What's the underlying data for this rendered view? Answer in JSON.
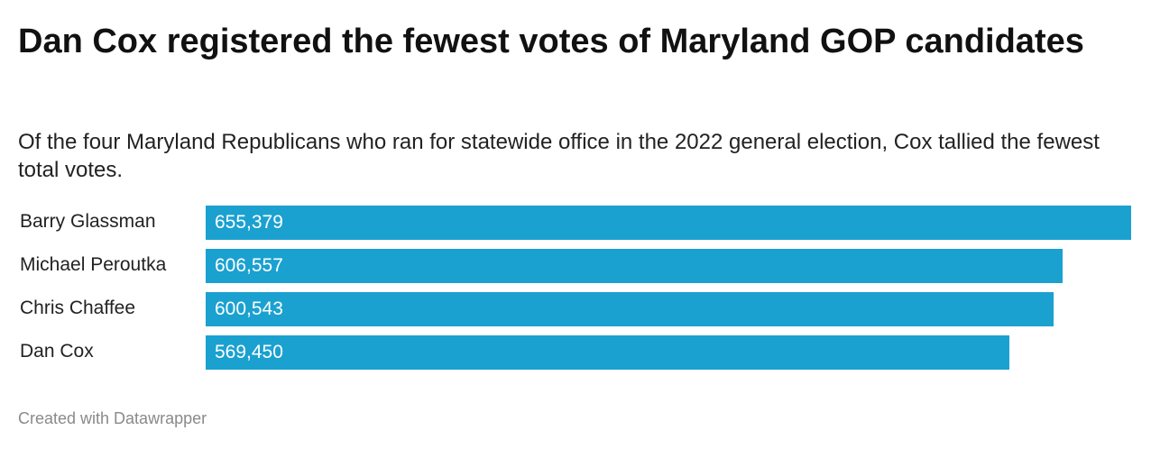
{
  "title": "Dan Cox registered the fewest votes of Maryland GOP candidates",
  "subtitle": "Of the four Maryland Republicans who ran for statewide office in the 2022 general election, Cox tallied the fewest total votes.",
  "footer": "Created with Datawrapper",
  "colors": {
    "bar": "#1aa1d0",
    "bar_value_text": "#ffffff"
  },
  "chart_data": {
    "type": "bar",
    "orientation": "horizontal",
    "title": "Dan Cox registered the fewest votes of Maryland GOP candidates",
    "subtitle": "Of the four Maryland Republicans who ran for statewide office in the 2022 general election, Cox tallied the fewest total votes.",
    "categories": [
      "Barry Glassman",
      "Michael Peroutka",
      "Chris Chaffee",
      "Dan Cox"
    ],
    "values": [
      655379,
      606557,
      600543,
      569450
    ],
    "value_labels": [
      "655,379",
      "606,557",
      "600,543",
      "569,450"
    ],
    "xlim": [
      0,
      655379
    ],
    "grid": false,
    "legend": "none"
  }
}
